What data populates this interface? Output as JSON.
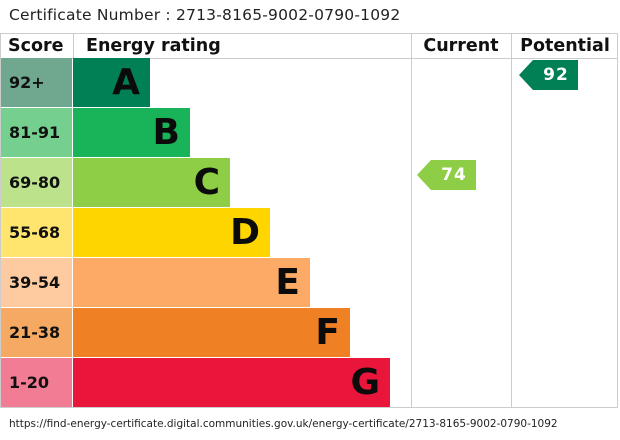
{
  "certificate": {
    "text": "Certificate Number : 2713-8165-9002-0790-1092"
  },
  "footer": {
    "url": "https://find-energy-certificate.digital.communities.gov.uk/energy-certificate/2713-8165-9002-0790-1092"
  },
  "chart_data": {
    "type": "bar",
    "columns": {
      "score": "Score",
      "rating": "Energy rating",
      "current": "Current",
      "potential": "Potential"
    },
    "bands": [
      {
        "letter": "A",
        "range": "92+",
        "min": 92,
        "color": "#008054",
        "score_bg": "#6fa78f"
      },
      {
        "letter": "B",
        "range": "81-91",
        "min": 81,
        "color": "#19b459",
        "score_bg": "#75d08f"
      },
      {
        "letter": "C",
        "range": "69-80",
        "min": 69,
        "color": "#8dce46",
        "score_bg": "#bce38c"
      },
      {
        "letter": "D",
        "range": "55-68",
        "min": 55,
        "color": "#ffd500",
        "score_bg": "#ffe56d"
      },
      {
        "letter": "E",
        "range": "39-54",
        "min": 39,
        "color": "#fcaa65",
        "score_bg": "#fdcb9f"
      },
      {
        "letter": "F",
        "range": "21-38",
        "min": 21,
        "color": "#ef8023",
        "score_bg": "#f6a963"
      },
      {
        "letter": "G",
        "range": "1-20",
        "min": 1,
        "color": "#e9153b",
        "score_bg": "#f27c93"
      }
    ],
    "current": {
      "value": 74,
      "label": "74",
      "band": "C",
      "color": "#8dce46"
    },
    "potential": {
      "value": 92,
      "label": "92",
      "band": "A",
      "color": "#008054"
    }
  }
}
